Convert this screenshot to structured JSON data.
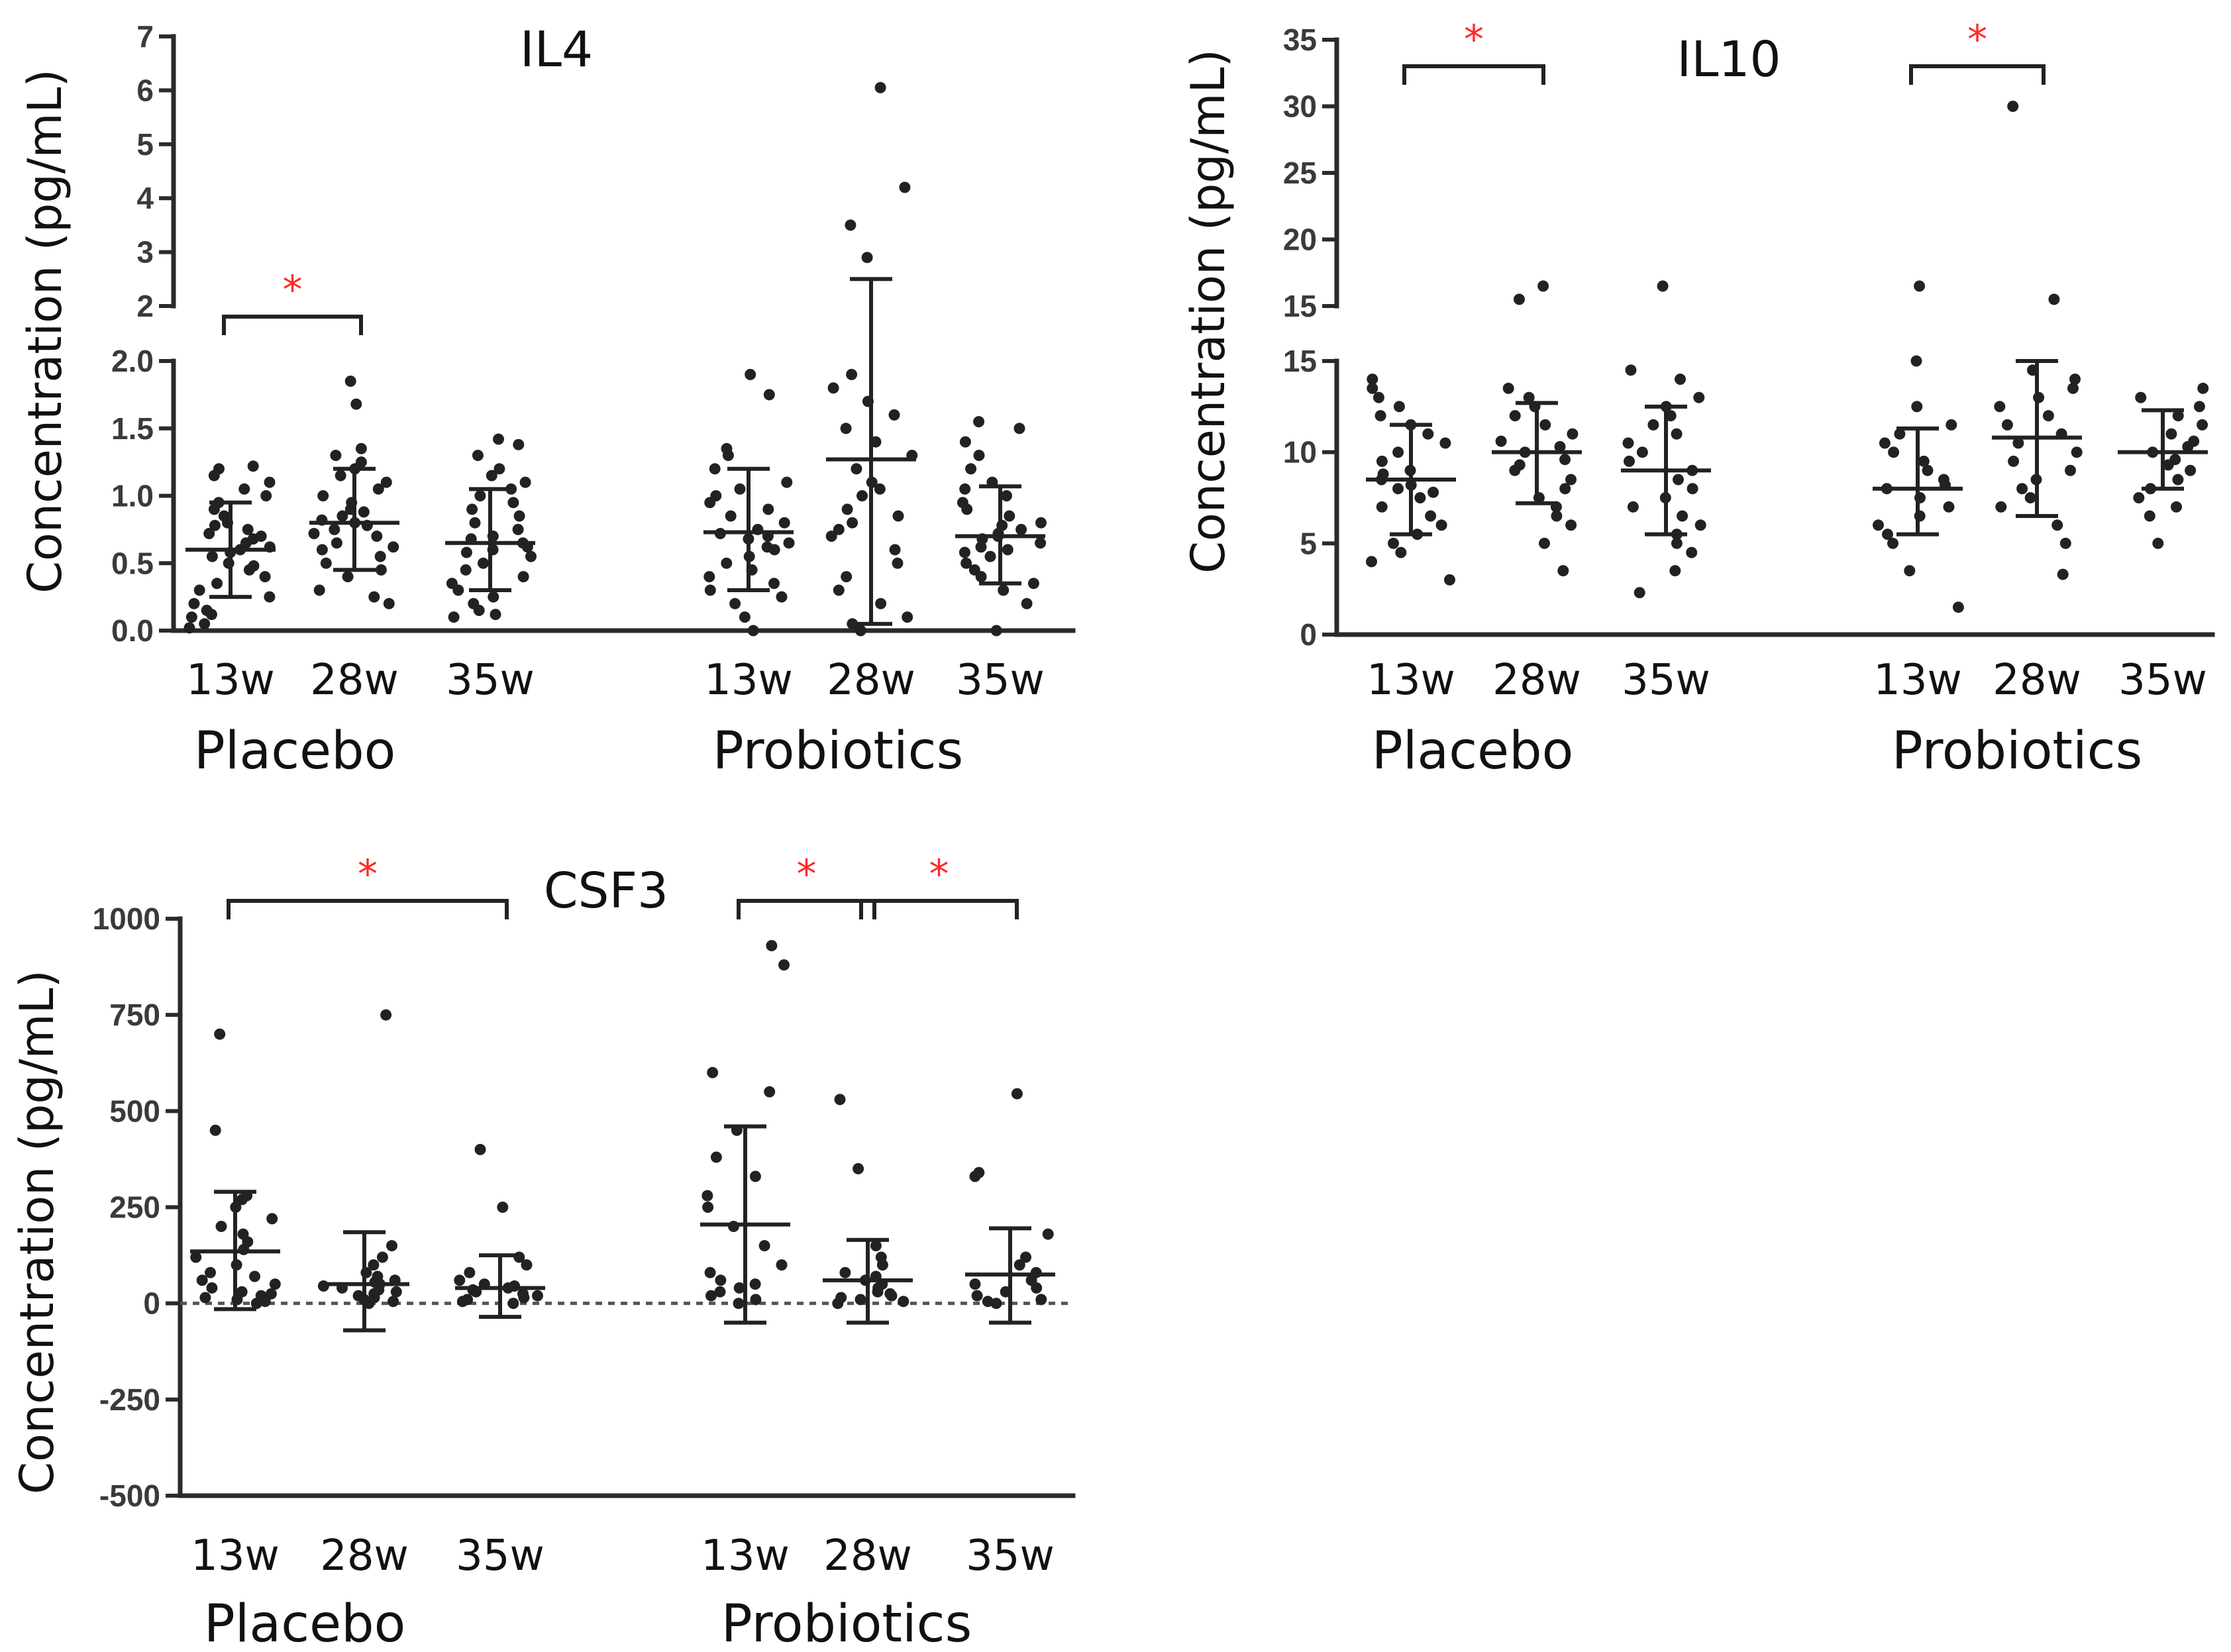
{
  "chart_data": [
    {
      "type": "scatter",
      "title": "IL4",
      "ylabel": "Concentration (pg/mL)",
      "axis_break": true,
      "lower_axis": {
        "ylim": [
          0.0,
          2.0
        ],
        "ticks": [
          "0.0",
          "0.5",
          "1.0",
          "1.5",
          "2.0"
        ]
      },
      "upper_axis": {
        "ylim": [
          2,
          7
        ],
        "ticks": [
          "2",
          "3",
          "4",
          "5",
          "6",
          "7"
        ]
      },
      "groups": [
        {
          "label": "Placebo",
          "categories": [
            "13w",
            "28w",
            "35w"
          ]
        },
        {
          "label": "Probiotics",
          "categories": [
            "13w",
            "28w",
            "35w"
          ]
        }
      ],
      "series": [
        {
          "group": "Placebo",
          "time": "13w",
          "mean": 0.6,
          "sd_low": 0.25,
          "sd_high": 0.95,
          "points": [
            0.02,
            0.05,
            0.1,
            0.12,
            0.15,
            0.2,
            0.25,
            0.3,
            0.35,
            0.4,
            0.45,
            0.48,
            0.5,
            0.55,
            0.58,
            0.6,
            0.62,
            0.65,
            0.68,
            0.7,
            0.72,
            0.75,
            0.78,
            0.8,
            0.85,
            0.9,
            0.95,
            1.0,
            1.05,
            1.1,
            1.15,
            1.2,
            1.22
          ]
        },
        {
          "group": "Placebo",
          "time": "28w",
          "mean": 0.8,
          "sd_low": 0.45,
          "sd_high": 1.2,
          "points": [
            0.2,
            0.25,
            0.3,
            0.4,
            0.45,
            0.5,
            0.55,
            0.6,
            0.62,
            0.65,
            0.7,
            0.72,
            0.75,
            0.78,
            0.8,
            0.82,
            0.85,
            0.88,
            0.9,
            0.95,
            1.0,
            1.05,
            1.1,
            1.15,
            1.2,
            1.25,
            1.3,
            1.35,
            1.68,
            1.85
          ]
        },
        {
          "group": "Placebo",
          "time": "35w",
          "mean": 0.65,
          "sd_low": 0.3,
          "sd_high": 1.05,
          "points": [
            0.1,
            0.12,
            0.15,
            0.2,
            0.25,
            0.3,
            0.35,
            0.4,
            0.45,
            0.5,
            0.55,
            0.58,
            0.6,
            0.62,
            0.65,
            0.68,
            0.7,
            0.75,
            0.8,
            0.85,
            0.9,
            0.95,
            1.0,
            1.05,
            1.1,
            1.15,
            1.2,
            1.3,
            1.38,
            1.42
          ]
        },
        {
          "group": "Probiotics",
          "time": "13w",
          "mean": 0.73,
          "sd_low": 0.3,
          "sd_high": 1.2,
          "points": [
            0.0,
            0.1,
            0.2,
            0.25,
            0.3,
            0.35,
            0.4,
            0.45,
            0.5,
            0.55,
            0.6,
            0.62,
            0.65,
            0.68,
            0.7,
            0.72,
            0.75,
            0.8,
            0.85,
            0.9,
            0.95,
            1.0,
            1.05,
            1.1,
            1.2,
            1.3,
            1.35,
            1.75,
            1.9
          ]
        },
        {
          "group": "Probiotics",
          "time": "28w",
          "mean": 1.27,
          "sd_low": 0.05,
          "sd_high": 2.5,
          "points": [
            0.0,
            0.05,
            0.1,
            0.2,
            0.3,
            0.4,
            0.5,
            0.6,
            0.7,
            0.75,
            0.8,
            0.85,
            0.9,
            1.0,
            1.05,
            1.1,
            1.2,
            1.3,
            1.4,
            1.5,
            1.6,
            1.7,
            1.8,
            1.9,
            2.9,
            3.5,
            4.2,
            6.05
          ]
        },
        {
          "group": "Probiotics",
          "time": "35w",
          "mean": 0.7,
          "sd_low": 0.35,
          "sd_high": 1.07,
          "points": [
            0.0,
            0.2,
            0.3,
            0.35,
            0.4,
            0.45,
            0.5,
            0.55,
            0.58,
            0.6,
            0.62,
            0.65,
            0.68,
            0.7,
            0.72,
            0.75,
            0.78,
            0.8,
            0.85,
            0.9,
            0.95,
            1.0,
            1.05,
            1.1,
            1.2,
            1.3,
            1.4,
            1.5,
            1.55
          ]
        }
      ],
      "significance": [
        {
          "from": "Placebo 13w",
          "to": "Placebo 28w",
          "label": "*"
        }
      ]
    },
    {
      "type": "scatter",
      "title": "IL10",
      "ylabel": "Concentration  (pg/mL)",
      "axis_break": true,
      "lower_axis": {
        "ylim": [
          0,
          15
        ],
        "ticks": [
          "0",
          "5",
          "10",
          "15"
        ]
      },
      "upper_axis": {
        "ylim": [
          15,
          35
        ],
        "ticks": [
          "15",
          "20",
          "25",
          "30",
          "35"
        ]
      },
      "groups": [
        {
          "label": "Placebo",
          "categories": [
            "13w",
            "28w",
            "35w"
          ]
        },
        {
          "label": "Probiotics",
          "categories": [
            "13w",
            "28w",
            "35w"
          ]
        }
      ],
      "series": [
        {
          "group": "Placebo",
          "time": "13w",
          "mean": 8.5,
          "sd_low": 5.5,
          "sd_high": 11.5,
          "points": [
            3.0,
            4.0,
            4.5,
            5.0,
            5.5,
            6.0,
            6.5,
            7.0,
            7.5,
            7.8,
            8.0,
            8.2,
            8.5,
            8.8,
            9.0,
            9.5,
            10.0,
            10.5,
            11.0,
            11.5,
            12.0,
            12.5,
            13.0,
            13.5,
            14.0
          ]
        },
        {
          "group": "Placebo",
          "time": "28w",
          "mean": 10.0,
          "sd_low": 7.2,
          "sd_high": 12.7,
          "points": [
            3.5,
            5.0,
            6.0,
            6.5,
            7.0,
            7.5,
            8.0,
            8.5,
            9.0,
            9.3,
            9.6,
            10.0,
            10.3,
            10.6,
            11.0,
            11.5,
            12.0,
            12.5,
            13.0,
            13.5,
            15.5,
            16.5
          ]
        },
        {
          "group": "Placebo",
          "time": "35w",
          "mean": 9.0,
          "sd_low": 5.5,
          "sd_high": 12.5,
          "points": [
            2.3,
            3.5,
            4.5,
            5.0,
            5.5,
            6.0,
            6.5,
            7.0,
            7.5,
            8.0,
            8.5,
            9.0,
            9.5,
            10.0,
            10.5,
            11.0,
            11.5,
            12.0,
            12.5,
            13.0,
            14.0,
            14.5,
            16.5
          ]
        },
        {
          "group": "Probiotics",
          "time": "13w",
          "mean": 8.0,
          "sd_low": 5.5,
          "sd_high": 11.3,
          "points": [
            1.5,
            3.5,
            5.0,
            5.5,
            6.0,
            6.5,
            7.0,
            7.5,
            8.0,
            8.2,
            8.5,
            9.0,
            9.5,
            10.0,
            10.5,
            11.0,
            11.5,
            12.5,
            15.0,
            16.5
          ]
        },
        {
          "group": "Probiotics",
          "time": "28w",
          "mean": 10.8,
          "sd_low": 6.5,
          "sd_high": 15.0,
          "points": [
            3.3,
            5.0,
            6.0,
            7.0,
            7.5,
            8.0,
            8.5,
            9.0,
            9.5,
            10.0,
            10.5,
            11.0,
            11.5,
            12.0,
            12.5,
            13.0,
            13.5,
            14.0,
            14.5,
            15.5,
            30.0
          ]
        },
        {
          "group": "Probiotics",
          "time": "35w",
          "mean": 10.0,
          "sd_low": 8.0,
          "sd_high": 12.3,
          "points": [
            5.0,
            6.5,
            7.0,
            7.5,
            8.0,
            8.5,
            9.0,
            9.3,
            9.6,
            10.0,
            10.3,
            10.6,
            11.0,
            11.5,
            12.0,
            12.5,
            13.0,
            13.5
          ]
        }
      ],
      "significance": [
        {
          "from": "Placebo 13w",
          "to": "Placebo 28w",
          "label": "*"
        },
        {
          "from": "Probiotics 13w",
          "to": "Probiotics 28w",
          "label": "*"
        }
      ]
    },
    {
      "type": "scatter",
      "title": "CSF3",
      "ylabel": "Concentration (pg/mL)",
      "axis_break": false,
      "ylim": [
        -500,
        1000
      ],
      "ticks": [
        "1000",
        "750",
        "500",
        "250",
        "0",
        "-250",
        "-500"
      ],
      "zero_line": true,
      "groups": [
        {
          "label": "Placebo",
          "categories": [
            "13w",
            "28w",
            "35w"
          ]
        },
        {
          "label": "Probiotics",
          "categories": [
            "13w",
            "28w",
            "35w"
          ]
        }
      ],
      "series": [
        {
          "group": "Placebo",
          "time": "13w",
          "mean": 135,
          "sd_low": -15,
          "sd_high": 290,
          "points": [
            0,
            5,
            10,
            15,
            20,
            25,
            30,
            40,
            50,
            60,
            70,
            80,
            100,
            120,
            140,
            160,
            180,
            200,
            220,
            250,
            270,
            280,
            450,
            700
          ]
        },
        {
          "group": "Placebo",
          "time": "28w",
          "mean": 50,
          "sd_low": -70,
          "sd_high": 185,
          "points": [
            0,
            5,
            10,
            15,
            20,
            25,
            30,
            35,
            40,
            45,
            50,
            55,
            60,
            70,
            80,
            100,
            120,
            150,
            750
          ]
        },
        {
          "group": "Placebo",
          "time": "35w",
          "mean": 40,
          "sd_low": -35,
          "sd_high": 125,
          "points": [
            0,
            5,
            10,
            15,
            20,
            25,
            30,
            35,
            40,
            45,
            50,
            60,
            80,
            100,
            120,
            250,
            400
          ]
        },
        {
          "group": "Probiotics",
          "time": "13w",
          "mean": 205,
          "sd_low": -50,
          "sd_high": 460,
          "points": [
            0,
            10,
            20,
            30,
            40,
            50,
            60,
            80,
            100,
            150,
            200,
            250,
            280,
            330,
            380,
            450,
            550,
            600,
            880,
            930
          ]
        },
        {
          "group": "Probiotics",
          "time": "28w",
          "mean": 60,
          "sd_low": -50,
          "sd_high": 165,
          "points": [
            0,
            5,
            10,
            15,
            20,
            25,
            30,
            40,
            50,
            60,
            70,
            80,
            100,
            120,
            150,
            350,
            530
          ]
        },
        {
          "group": "Probiotics",
          "time": "35w",
          "mean": 75,
          "sd_low": -50,
          "sd_high": 195,
          "points": [
            0,
            5,
            10,
            20,
            30,
            40,
            50,
            60,
            80,
            100,
            120,
            180,
            330,
            340,
            545
          ]
        }
      ],
      "significance": [
        {
          "from": "Placebo 13w",
          "to": "Placebo 35w",
          "label": "*"
        },
        {
          "from": "Probiotics 13w",
          "to": "Probiotics 28w",
          "label": "*"
        },
        {
          "from": "Probiotics 28w",
          "to": "Probiotics 35w",
          "label": "*"
        }
      ]
    }
  ]
}
